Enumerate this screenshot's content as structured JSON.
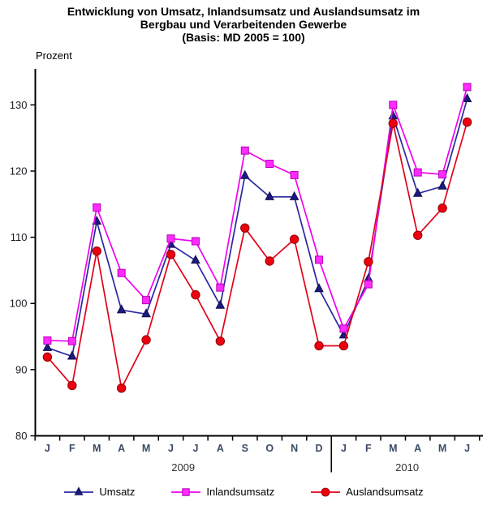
{
  "title": {
    "line1": "Entwicklung von Umsatz, Inlandsumsatz und Auslandsumsatz im",
    "line2": "Bergbau und Verarbeitenden Gewerbe",
    "line3": "(Basis: MD 2005 = 100)"
  },
  "chart_data": {
    "type": "line",
    "title": "Entwicklung von Umsatz, Inlandsumsatz und Auslandsumsatz im Bergbau und Verarbeitenden Gewerbe (Basis: MD 2005 = 100)",
    "ylabel": "Prozent",
    "xlabel": "",
    "ylim": [
      80,
      135
    ],
    "yticks": [
      80,
      90,
      100,
      110,
      120,
      130
    ],
    "grid": false,
    "legend_position": "bottom",
    "categories": [
      "J",
      "F",
      "M",
      "A",
      "M",
      "J",
      "J",
      "A",
      "S",
      "O",
      "N",
      "D",
      "J",
      "F",
      "M",
      "A",
      "M",
      "J"
    ],
    "year_groups": [
      {
        "label": "2009",
        "span": 12
      },
      {
        "label": "2010",
        "span": 6
      }
    ],
    "series": [
      {
        "name": "Umsatz",
        "marker": "triangle",
        "line_color": "#2B28A0",
        "marker_fill": "#1C1980",
        "marker_stroke": "#10104F",
        "values": [
          93.3,
          92.0,
          112.4,
          99.0,
          98.4,
          108.9,
          106.5,
          99.7,
          119.3,
          116.1,
          116.1,
          102.2,
          95.2,
          103.7,
          128.3,
          116.6,
          117.7,
          130.9
        ]
      },
      {
        "name": "Inlandsumsatz",
        "marker": "square",
        "line_color": "#F000F0",
        "marker_fill": "#FF2BFF",
        "marker_stroke": "#B400B4",
        "values": [
          94.4,
          94.3,
          114.5,
          104.6,
          100.5,
          109.8,
          109.4,
          102.4,
          123.1,
          121.1,
          119.4,
          106.6,
          96.2,
          102.9,
          130.0,
          119.8,
          119.5,
          132.7
        ]
      },
      {
        "name": "Auslandsumsatz",
        "marker": "circle",
        "line_color": "#E2001A",
        "marker_fill": "#EE0011",
        "marker_stroke": "#8F0000",
        "values": [
          91.9,
          87.6,
          107.9,
          87.2,
          94.5,
          107.4,
          101.3,
          94.3,
          111.4,
          106.4,
          109.7,
          93.6,
          93.6,
          106.3,
          127.2,
          110.3,
          114.4,
          127.4
        ]
      }
    ],
    "axis_color": "#000000",
    "tick_label_color": "#1B1B24",
    "month_label_color": "#3A4A63"
  }
}
